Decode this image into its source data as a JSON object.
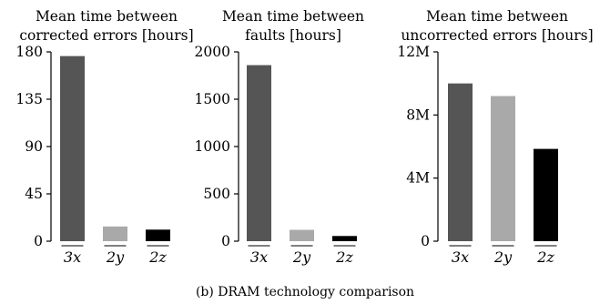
{
  "caption": "(b) DRAM technology comparison",
  "chart_data": [
    {
      "type": "bar",
      "title": [
        "Mean time between",
        "corrected errors [hours]"
      ],
      "categories": [
        "3x",
        "2y",
        "2z"
      ],
      "values": [
        176,
        14,
        11
      ],
      "colors": [
        "#555555",
        "#a9a9a9",
        "#000000"
      ],
      "ylim": [
        0,
        180
      ],
      "yticks": [
        0,
        45,
        90,
        135,
        180
      ],
      "ytick_labels": [
        "0",
        "45",
        "90",
        "135",
        "180"
      ]
    },
    {
      "type": "bar",
      "title": [
        "Mean time between",
        "faults [hours]"
      ],
      "categories": [
        "3x",
        "2y",
        "2z"
      ],
      "values": [
        1860,
        120,
        55
      ],
      "colors": [
        "#555555",
        "#a9a9a9",
        "#000000"
      ],
      "ylim": [
        0,
        2000
      ],
      "yticks": [
        0,
        500,
        1000,
        1500,
        2000
      ],
      "ytick_labels": [
        "0",
        "500",
        "1000",
        "1500",
        "2000"
      ]
    },
    {
      "type": "bar",
      "title": [
        "Mean time between",
        "uncorrected errors [hours]"
      ],
      "categories": [
        "3x",
        "2y",
        "2z"
      ],
      "values": [
        10000000,
        9200000,
        5850000
      ],
      "colors": [
        "#555555",
        "#a9a9a9",
        "#000000"
      ],
      "ylim": [
        0,
        12000000
      ],
      "yticks": [
        0,
        4000000,
        8000000,
        12000000
      ],
      "ytick_labels": [
        "0",
        "4M",
        "8M",
        "12M"
      ]
    }
  ]
}
